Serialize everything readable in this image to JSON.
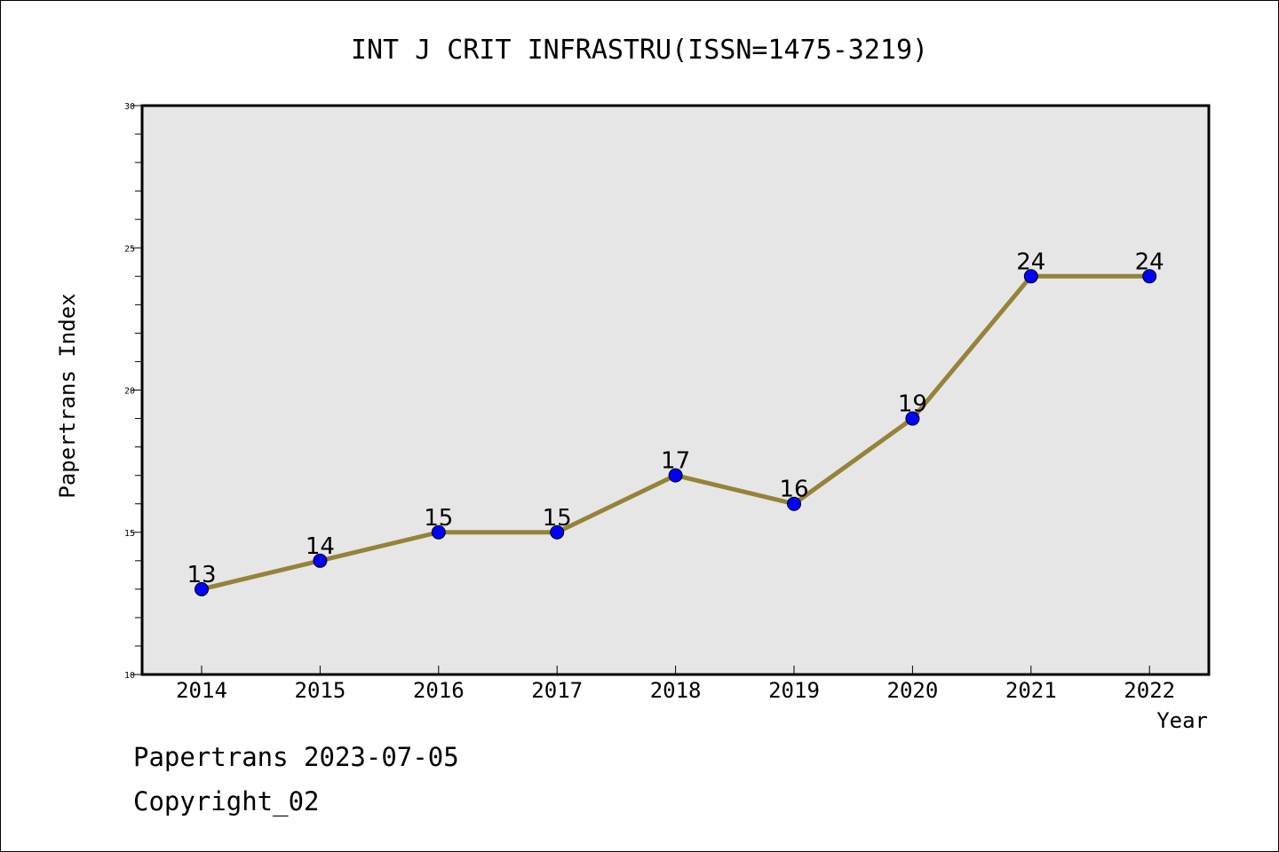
{
  "chart_data": {
    "type": "line",
    "title": "INT J CRIT INFRASTRU(ISSN=1475-3219)",
    "xlabel": "Year",
    "ylabel": "Papertrans Index",
    "categories": [
      "2014",
      "2015",
      "2016",
      "2017",
      "2018",
      "2019",
      "2020",
      "2021",
      "2022"
    ],
    "series": [
      {
        "values": [
          13,
          14,
          15,
          15,
          17,
          16,
          19,
          24,
          24
        ]
      }
    ],
    "data_labels": [
      "13",
      "14",
      "15",
      "15",
      "17",
      "16",
      "19",
      "24",
      "24"
    ],
    "ylim": [
      10,
      30
    ],
    "yticks": [
      10,
      15,
      20,
      25,
      30
    ],
    "ytick_labels": [
      "10",
      "15",
      "20",
      "25",
      "30"
    ],
    "grid": false,
    "line_color": "#948338",
    "marker_color": "#0000ff",
    "plot_background": "#e6e6e6"
  },
  "footer": {
    "line1": "Papertrans 2023-07-05",
    "line2": "Copyright_02"
  }
}
